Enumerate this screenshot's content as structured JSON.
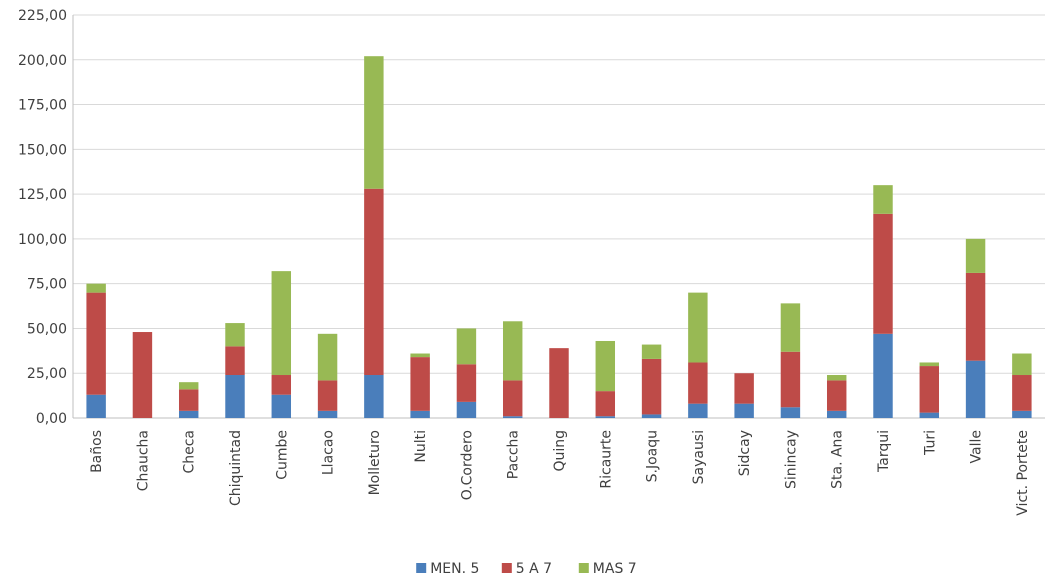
{
  "chart_data": {
    "type": "bar",
    "stacked": true,
    "ylim": [
      0,
      225
    ],
    "yticks": [
      "0,00",
      "25,00",
      "50,00",
      "75,00",
      "100,00",
      "125,00",
      "150,00",
      "175,00",
      "200,00",
      "225,00"
    ],
    "categories": [
      "Baños",
      "Chaucha",
      "Checa",
      "Chiquintad",
      "Cumbe",
      "Llacao",
      "Molleturo",
      "Nulti",
      "O.Cordero",
      "Paccha",
      "Quing",
      "Ricaurte",
      "S.Joaqu",
      "Sayausi",
      "Sidcay",
      "Sinincay",
      "Sta. Ana",
      "Tarqui",
      "Turi",
      "Valle",
      "Vict. Portete"
    ],
    "series": [
      {
        "name": "MEN. 5",
        "color": "#4a7ebb",
        "values": [
          13,
          0,
          4,
          24,
          13,
          4,
          24,
          4,
          9,
          1,
          0,
          1,
          2,
          8,
          8,
          6,
          4,
          47,
          3,
          32,
          4
        ]
      },
      {
        "name": "5 A 7",
        "color": "#be4b48",
        "values": [
          57,
          48,
          12,
          16,
          11,
          17,
          104,
          30,
          21,
          20,
          39,
          14,
          31,
          23,
          17,
          31,
          17,
          67,
          26,
          49,
          20
        ]
      },
      {
        "name": "MAS 7",
        "color": "#98b954",
        "values": [
          5,
          0,
          4,
          13,
          58,
          26,
          74,
          2,
          20,
          33,
          0,
          28,
          8,
          39,
          0,
          27,
          3,
          16,
          2,
          19,
          12
        ]
      }
    ],
    "legend_position": "bottom",
    "grid": true
  }
}
